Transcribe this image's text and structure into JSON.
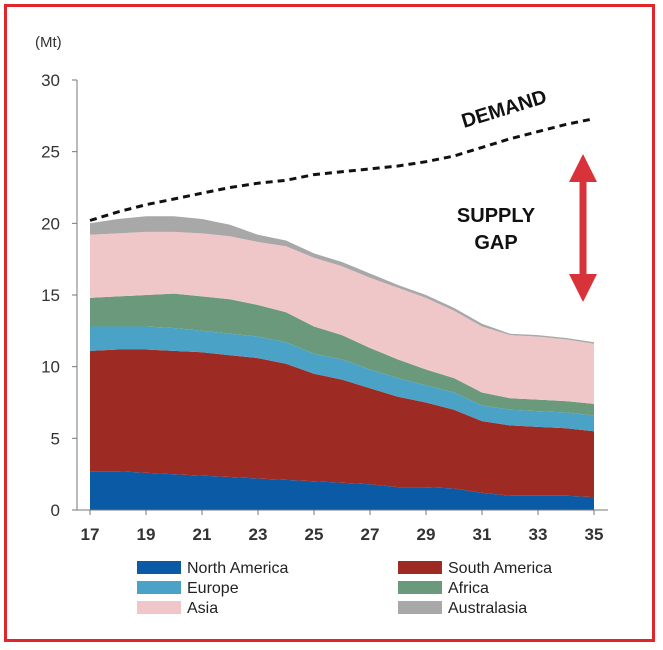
{
  "chart_data": {
    "type": "area",
    "stacked": true,
    "unit_label": "(Mt)",
    "xlabel": "",
    "ylabel": "",
    "x": [
      17,
      18,
      19,
      20,
      21,
      22,
      23,
      24,
      25,
      26,
      27,
      28,
      29,
      30,
      31,
      32,
      33,
      34,
      35
    ],
    "x_ticks": [
      "17",
      "19",
      "21",
      "23",
      "25",
      "27",
      "29",
      "31",
      "33",
      "35"
    ],
    "y_ticks": [
      "0",
      "5",
      "10",
      "15",
      "20",
      "25",
      "30"
    ],
    "ylim": [
      0,
      30
    ],
    "xlim": [
      17,
      35
    ],
    "grid": false,
    "legend_position": "bottom",
    "series": [
      {
        "name": "North America",
        "color": "#0b5aa5",
        "values": [
          2.7,
          2.7,
          2.6,
          2.5,
          2.4,
          2.3,
          2.2,
          2.1,
          2.0,
          1.9,
          1.8,
          1.6,
          1.6,
          1.5,
          1.2,
          1.0,
          1.0,
          1.0,
          0.9
        ]
      },
      {
        "name": "South America",
        "color": "#9e2a24",
        "values": [
          8.4,
          8.5,
          8.6,
          8.6,
          8.6,
          8.5,
          8.4,
          8.1,
          7.5,
          7.2,
          6.7,
          6.3,
          5.9,
          5.5,
          5.0,
          4.9,
          4.8,
          4.7,
          4.6
        ]
      },
      {
        "name": "Europe",
        "color": "#4aa3c7",
        "values": [
          1.7,
          1.6,
          1.6,
          1.6,
          1.5,
          1.5,
          1.5,
          1.5,
          1.4,
          1.4,
          1.3,
          1.3,
          1.2,
          1.2,
          1.1,
          1.1,
          1.1,
          1.1,
          1.1
        ]
      },
      {
        "name": "Africa",
        "color": "#6a9a7b",
        "values": [
          2.0,
          2.1,
          2.2,
          2.4,
          2.4,
          2.4,
          2.2,
          2.1,
          1.9,
          1.7,
          1.5,
          1.3,
          1.1,
          1.0,
          0.9,
          0.8,
          0.8,
          0.8,
          0.8
        ]
      },
      {
        "name": "Asia",
        "color": "#f0c7c9",
        "values": [
          4.4,
          4.4,
          4.4,
          4.3,
          4.4,
          4.4,
          4.4,
          4.6,
          4.8,
          4.8,
          4.9,
          5.0,
          5.0,
          4.7,
          4.6,
          4.4,
          4.4,
          4.3,
          4.2
        ]
      },
      {
        "name": "Australasia",
        "color": "#a8a8a8",
        "values": [
          0.8,
          1.0,
          1.1,
          1.1,
          1.0,
          0.8,
          0.5,
          0.4,
          0.3,
          0.3,
          0.3,
          0.2,
          0.2,
          0.2,
          0.2,
          0.1,
          0.1,
          0.1,
          0.1
        ]
      }
    ],
    "demand": {
      "label": "DEMAND",
      "style": "dashed",
      "color": "#111111",
      "values": [
        20.2,
        20.8,
        21.3,
        21.7,
        22.1,
        22.5,
        22.8,
        23.0,
        23.4,
        23.6,
        23.8,
        24.0,
        24.3,
        24.7,
        25.3,
        25.9,
        26.4,
        26.9,
        27.3
      ]
    },
    "annotations": {
      "supply_gap_line1": "SUPPLY",
      "supply_gap_line2": "GAP",
      "arrow_color": "#d8323a"
    }
  }
}
